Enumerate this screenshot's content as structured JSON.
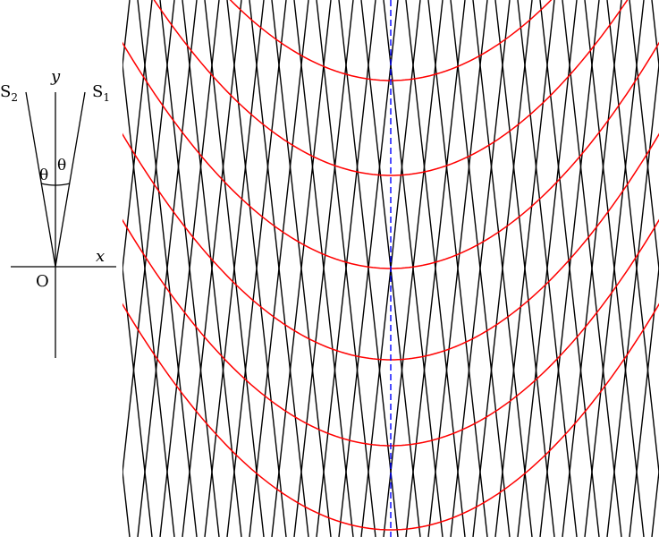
{
  "labels": {
    "y_axis": "y",
    "x_axis": "x",
    "origin": "O",
    "s1_base": "S",
    "s1_sub": "1",
    "s2_base": "S",
    "s2_sub": "2",
    "theta_left": "θ",
    "theta_right": "θ"
  },
  "colors": {
    "wave_lines": "#000000",
    "hyperbolas": "#ff0000",
    "symmetry_axis": "#0000ff",
    "background": "#ffffff"
  },
  "figure": {
    "description_icon": "interference-diagram",
    "inset_icon": "axes-with-two-beams"
  }
}
